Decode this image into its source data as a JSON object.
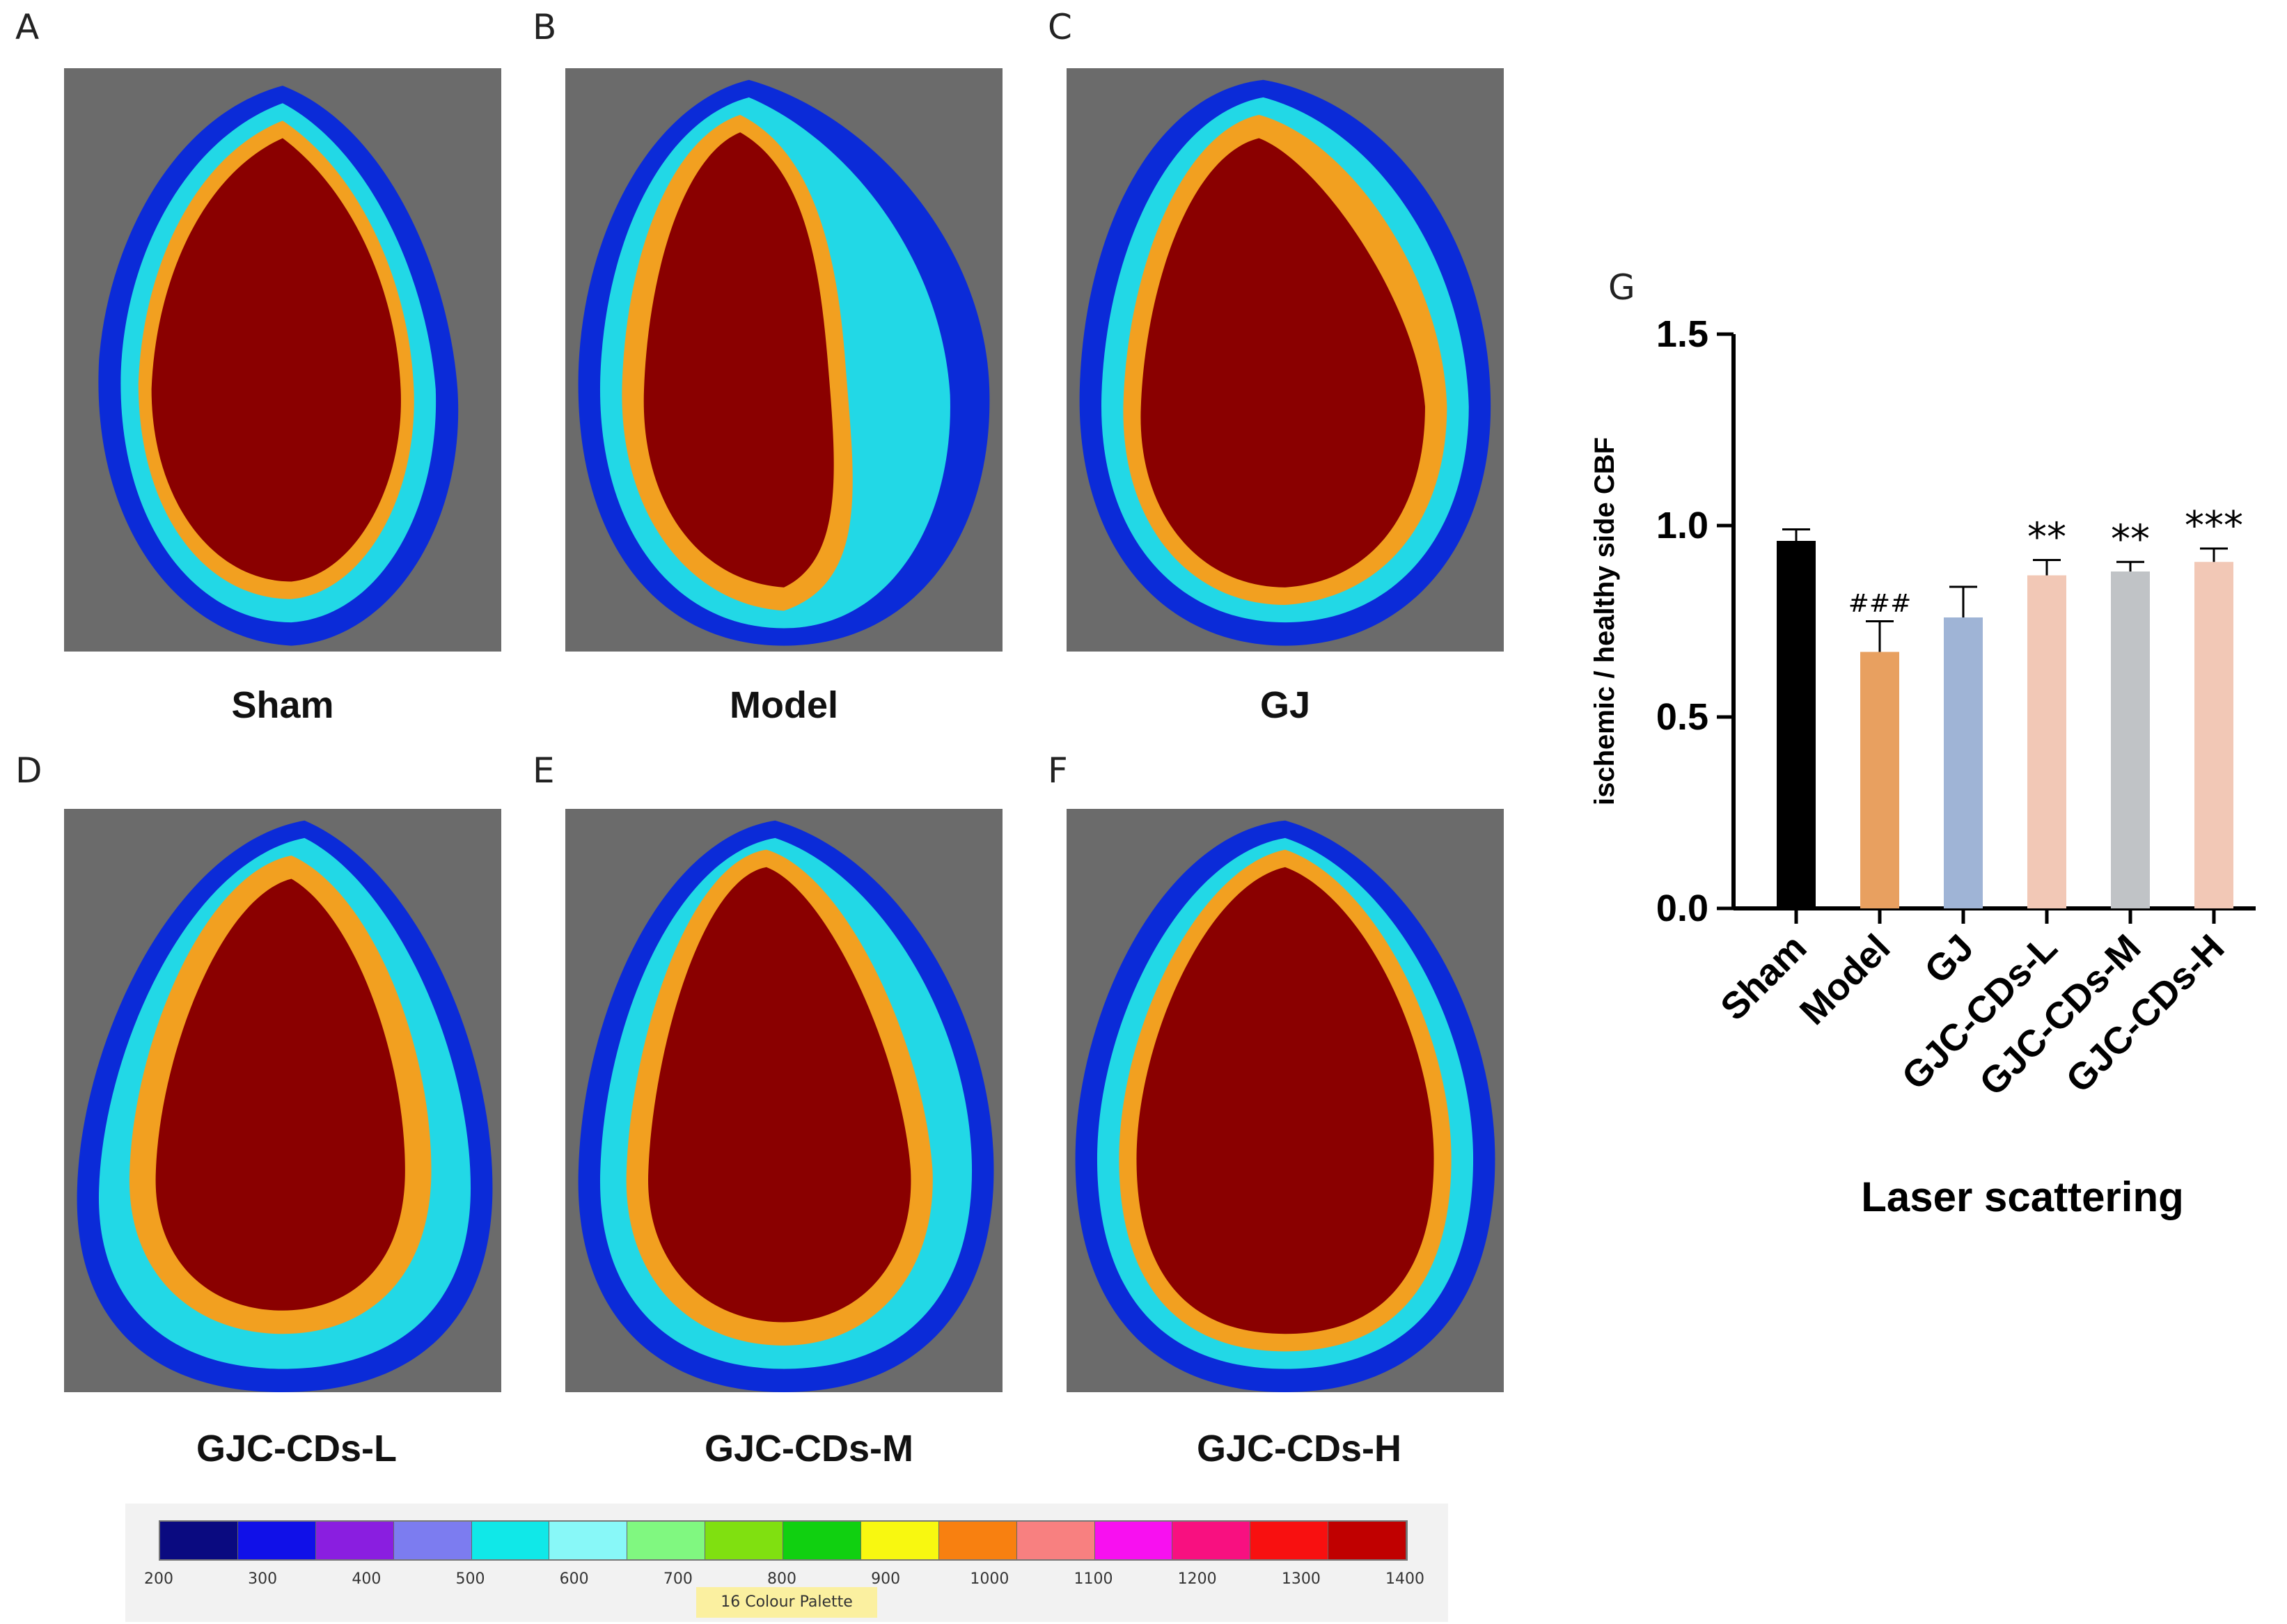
{
  "panels": [
    {
      "letter": "A",
      "caption": "Sham"
    },
    {
      "letter": "B",
      "caption": "Model"
    },
    {
      "letter": "C",
      "caption": "GJ"
    },
    {
      "letter": "D",
      "caption": "GJC-CDs-L"
    },
    {
      "letter": "E",
      "caption": "GJC-CDs-M"
    },
    {
      "letter": "F",
      "caption": "GJC-CDs-H"
    }
  ],
  "palette": {
    "name": "16 Colour Palette",
    "ticks": [
      "200",
      "300",
      "400",
      "500",
      "600",
      "700",
      "800",
      "900",
      "1000",
      "1100",
      "1200",
      "1300",
      "1400"
    ],
    "colors": [
      "#0a0a80",
      "#1010e8",
      "#8a1ee0",
      "#7c7cf0",
      "#10e8e8",
      "#88f8f8",
      "#80f880",
      "#80e010",
      "#10d010",
      "#f8f810",
      "#f88010",
      "#f88080",
      "#f810f0",
      "#f81080",
      "#f81010",
      "#c00000"
    ]
  },
  "chart_data": {
    "panel_letter": "G",
    "type": "bar",
    "categories": [
      "Sham",
      "Model",
      "GJ",
      "GJC-CDs-L",
      "GJC-CDs-M",
      "GJC-CDs-H"
    ],
    "values": [
      0.96,
      0.67,
      0.76,
      0.87,
      0.88,
      0.905
    ],
    "errors": [
      0.03,
      0.08,
      0.08,
      0.04,
      0.025,
      0.035
    ],
    "annotations": [
      "",
      "###",
      "",
      "**",
      "**",
      "***"
    ],
    "colors": [
      "#000000",
      "#e8a060",
      "#9fb4d6",
      "#f2c8b6",
      "#c0c3c6",
      "#f2c8b6"
    ],
    "ylabel": "ischemic / healthy side CBF",
    "xlabel": "Laser scattering",
    "ylim": [
      0,
      1.5
    ],
    "yticks": [
      "0.0",
      "0.5",
      "1.0",
      "1.5"
    ]
  }
}
